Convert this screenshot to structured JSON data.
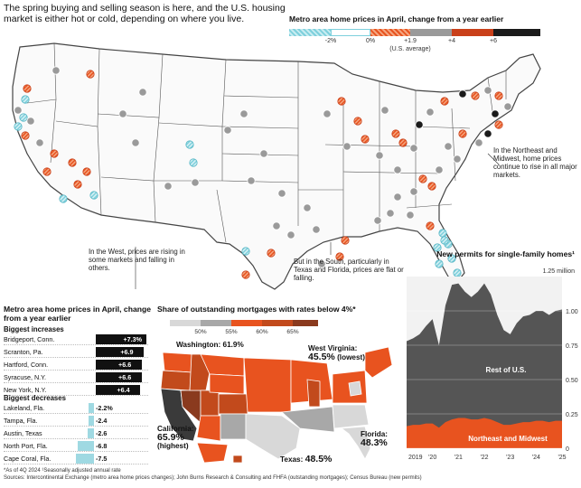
{
  "intro": {
    "text": "The spring buying and selling season is here, and the U.S. housing market is either hot or cold, depending on where you live."
  },
  "top_map": {
    "legend_title": "Metro area home prices in April, change from a year earlier",
    "legend_ticks": [
      "-2%",
      "0%",
      "+1.9",
      "+4",
      "+6"
    ],
    "legend_avg_note": "(U.S. average)",
    "legend_colors": [
      "#7ed0dc",
      "#e8531f",
      "#9a9a9a",
      "#c9401a",
      "#1b1b1b"
    ],
    "annotations": {
      "west": "In the West, prices are rising in some markets and falling in others.",
      "south": "But in the South, particularly in Texas and Florida, prices are flat or falling.",
      "northeast": "In the Northeast and Midwest, home prices continue to rise in all major markets."
    }
  },
  "table": {
    "title": "Metro area home prices in April, change from a year earlier",
    "increases_heading": "Biggest increases",
    "decreases_heading": "Biggest decreases",
    "increases": [
      {
        "name": "Bridgeport, Conn.",
        "value": 7.3,
        "label": "+7.3%"
      },
      {
        "name": "Scranton, Pa.",
        "value": 6.9,
        "label": "+6.9"
      },
      {
        "name": "Hartford, Conn.",
        "value": 6.6,
        "label": "+6.6"
      },
      {
        "name": "Syracuse, N.Y.",
        "value": 6.6,
        "label": "+6.6"
      },
      {
        "name": "New York, N.Y.",
        "value": 6.4,
        "label": "+6.4"
      }
    ],
    "decreases": [
      {
        "name": "Lakeland, Fla.",
        "value": -2.2,
        "label": "-2.2%"
      },
      {
        "name": "Tampa, Fla.",
        "value": -2.4,
        "label": "-2.4"
      },
      {
        "name": "Austin, Texas",
        "value": -2.6,
        "label": "-2.6"
      },
      {
        "name": "North Port, Fla.",
        "value": -6.8,
        "label": "-6.8"
      },
      {
        "name": "Cape Coral, Fla.",
        "value": -7.5,
        "label": "-7.5"
      }
    ]
  },
  "mortgage_map": {
    "title": "Share of outstanding mortgages with rates below 4%*",
    "legend_ticks": [
      "50%",
      "55%",
      "60%",
      "65%"
    ],
    "legend_colors": [
      "#d8d8d8",
      "#a8a8a8",
      "#e8531f",
      "#c24a1c",
      "#8a3a1e"
    ],
    "callouts": {
      "washington": {
        "label": "Washington:",
        "value": "61.9%"
      },
      "west_virginia": {
        "label": "West Virginia:",
        "value": "45.5%",
        "note": "(lowest)"
      },
      "california": {
        "label": "California:",
        "value": "65.9%",
        "note": "(highest)"
      },
      "florida": {
        "label": "Florida:",
        "value": "48.3%"
      },
      "texas": {
        "label": "Texas:",
        "value": "48.5%"
      }
    }
  },
  "chart_data": {
    "type": "area",
    "title": "New permits for single-family homes¹",
    "unit_note": "1.25 million",
    "x": [
      2019.0,
      2019.25,
      2019.5,
      2019.75,
      2020.0,
      2020.25,
      2020.5,
      2020.75,
      2021.0,
      2021.25,
      2021.5,
      2021.75,
      2022.0,
      2022.25,
      2022.5,
      2022.75,
      2023.0,
      2023.25,
      2023.5,
      2023.75,
      2024.0,
      2024.25,
      2024.5,
      2024.75,
      2025.0
    ],
    "xtick_labels": [
      "2019",
      "'20",
      "'21",
      "'22",
      "'23",
      "'24",
      "'25"
    ],
    "yticks": [
      0,
      0.25,
      0.5,
      0.75,
      1.0
    ],
    "ytick_labels": [
      "0",
      "0.25",
      "0.50",
      "0.75",
      "1.00"
    ],
    "ylim": [
      0,
      1.25
    ],
    "series": [
      {
        "name": "Northeast and Midwest",
        "values": [
          0.16,
          0.17,
          0.17,
          0.18,
          0.18,
          0.15,
          0.19,
          0.21,
          0.22,
          0.22,
          0.21,
          0.21,
          0.22,
          0.21,
          0.19,
          0.17,
          0.17,
          0.18,
          0.19,
          0.19,
          0.2,
          0.2,
          0.19,
          0.2,
          0.2
        ]
      },
      {
        "name": "Rest of U.S.",
        "values": [
          0.62,
          0.63,
          0.66,
          0.71,
          0.76,
          0.6,
          0.85,
          0.98,
          0.98,
          0.92,
          0.89,
          0.93,
          0.98,
          0.91,
          0.78,
          0.69,
          0.66,
          0.73,
          0.77,
          0.78,
          0.8,
          0.8,
          0.78,
          0.8,
          0.81
        ]
      }
    ],
    "colors": {
      "Northeast and Midwest": "#e8531f",
      "Rest of U.S.": "#555555"
    }
  },
  "footnotes": {
    "line1": "*As of 4Q 2024  ¹Seasonally adjusted annual rate",
    "line2": "Sources: Intercontinental Exchange (metro area home prices changes); John Burns Research & Consulting and FHFA (outstanding mortgages); Census Bureau (new permits)"
  }
}
